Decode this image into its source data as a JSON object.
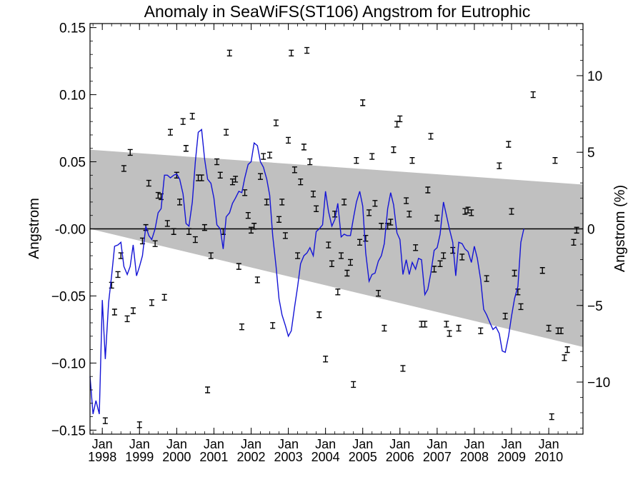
{
  "chart_data": {
    "type": "scatter",
    "title": "Anomaly in SeaWiFS(ST106) Angstrom for Eutrophic",
    "ylabel": "Angstrom",
    "ylabel_right": "Angstrom (%)",
    "xlim": [
      1997.67,
      2010.92
    ],
    "ylim": [
      -0.153,
      0.153
    ],
    "ylim_right": [
      -13.4,
      13.4
    ],
    "grid": false,
    "x_ticks": [
      {
        "month": "Jan",
        "year": "1998",
        "x": 1998.0
      },
      {
        "month": "Jan",
        "year": "1999",
        "x": 1999.0
      },
      {
        "month": "Jan",
        "year": "2000",
        "x": 2000.0
      },
      {
        "month": "Jan",
        "year": "2001",
        "x": 2001.0
      },
      {
        "month": "Jan",
        "year": "2002",
        "x": 2002.0
      },
      {
        "month": "Jan",
        "year": "2003",
        "x": 2003.0
      },
      {
        "month": "Jan",
        "year": "2004",
        "x": 2004.0
      },
      {
        "month": "Jan",
        "year": "2005",
        "x": 2005.0
      },
      {
        "month": "Jan",
        "year": "2006",
        "x": 2006.0
      },
      {
        "month": "Jan",
        "year": "2007",
        "x": 2007.0
      },
      {
        "month": "Jan",
        "year": "2008",
        "x": 2008.0
      },
      {
        "month": "Jan",
        "year": "2009",
        "x": 2009.0
      },
      {
        "month": "Jan",
        "year": "2010",
        "x": 2010.0
      }
    ],
    "y_ticks": [
      {
        "label": "0.15",
        "v": 0.15
      },
      {
        "label": "0.10",
        "v": 0.1
      },
      {
        "label": "0.05",
        "v": 0.05
      },
      {
        "label": "-0.00",
        "v": 0.0
      },
      {
        "label": "−0.05",
        "v": -0.05
      },
      {
        "label": "−0.10",
        "v": -0.1
      },
      {
        "label": "−0.15",
        "v": -0.15
      }
    ],
    "y2_ticks": [
      {
        "label": "10",
        "v": 10
      },
      {
        "label": "5",
        "v": 5
      },
      {
        "label": "0",
        "v": 0
      },
      {
        "label": "−5",
        "v": -5
      },
      {
        "label": "−10",
        "v": -10
      }
    ],
    "zero_line": 0.0,
    "confidence_band": {
      "upper": [
        [
          1997.67,
          0.059
        ],
        [
          2010.92,
          0.033
        ]
      ],
      "lower": [
        [
          1997.67,
          0.0
        ],
        [
          2010.92,
          -0.088
        ]
      ]
    },
    "points": [
      [
        1998.08,
        -0.143
      ],
      [
        1998.25,
        -0.042
      ],
      [
        1998.33,
        -0.062
      ],
      [
        1998.42,
        -0.034
      ],
      [
        1998.5,
        -0.02
      ],
      [
        1998.58,
        0.045
      ],
      [
        1998.67,
        -0.067
      ],
      [
        1998.75,
        0.057
      ],
      [
        1998.83,
        -0.061
      ],
      [
        1999.0,
        -0.146
      ],
      [
        1999.08,
        -0.009
      ],
      [
        1999.17,
        0.001
      ],
      [
        1999.25,
        0.034
      ],
      [
        1999.33,
        -0.055
      ],
      [
        1999.42,
        -0.011
      ],
      [
        1999.5,
        0.025
      ],
      [
        1999.58,
        0.024
      ],
      [
        1999.67,
        -0.051
      ],
      [
        1999.75,
        0.004
      ],
      [
        1999.83,
        0.072
      ],
      [
        1999.92,
        -0.002
      ],
      [
        2000.0,
        0.04
      ],
      [
        2000.08,
        0.02
      ],
      [
        2000.17,
        0.08
      ],
      [
        2000.25,
        0.06
      ],
      [
        2000.33,
        -0.002
      ],
      [
        2000.42,
        0.084
      ],
      [
        2000.5,
        -0.008
      ],
      [
        2000.58,
        0.038
      ],
      [
        2000.67,
        0.038
      ],
      [
        2000.75,
        0.001
      ],
      [
        2000.83,
        -0.12
      ],
      [
        2000.92,
        -0.02
      ],
      [
        2001.08,
        0.05
      ],
      [
        2001.17,
        0.04
      ],
      [
        2001.25,
        -0.002
      ],
      [
        2001.33,
        0.072
      ],
      [
        2001.42,
        0.131
      ],
      [
        2001.5,
        0.035
      ],
      [
        2001.58,
        0.037
      ],
      [
        2001.67,
        -0.028
      ],
      [
        2001.75,
        -0.073
      ],
      [
        2001.83,
        0.027
      ],
      [
        2001.92,
        0.01
      ],
      [
        2002.0,
        -0.001
      ],
      [
        2002.08,
        0.002
      ],
      [
        2002.17,
        -0.038
      ],
      [
        2002.25,
        0.039
      ],
      [
        2002.33,
        0.054
      ],
      [
        2002.42,
        0.02
      ],
      [
        2002.5,
        0.055
      ],
      [
        2002.58,
        -0.072
      ],
      [
        2002.67,
        0.079
      ],
      [
        2002.75,
        0.007
      ],
      [
        2002.83,
        0.02
      ],
      [
        2002.92,
        -0.005
      ],
      [
        2003.0,
        0.066
      ],
      [
        2003.08,
        0.131
      ],
      [
        2003.17,
        0.044
      ],
      [
        2003.25,
        -0.02
      ],
      [
        2003.33,
        0.035
      ],
      [
        2003.42,
        0.061
      ],
      [
        2003.5,
        0.133
      ],
      [
        2003.58,
        0.05
      ],
      [
        2003.67,
        0.026
      ],
      [
        2003.75,
        0.015
      ],
      [
        2003.83,
        -0.064
      ],
      [
        2004.0,
        -0.097
      ],
      [
        2004.08,
        -0.012
      ],
      [
        2004.17,
        -0.026
      ],
      [
        2004.25,
        0.011
      ],
      [
        2004.33,
        -0.047
      ],
      [
        2004.42,
        -0.02
      ],
      [
        2004.5,
        0.02
      ],
      [
        2004.58,
        -0.033
      ],
      [
        2004.67,
        -0.025
      ],
      [
        2004.75,
        -0.116
      ],
      [
        2004.83,
        0.051
      ],
      [
        2004.92,
        -0.01
      ],
      [
        2005.0,
        0.094
      ],
      [
        2005.08,
        -0.007
      ],
      [
        2005.17,
        0.012
      ],
      [
        2005.25,
        0.054
      ],
      [
        2005.33,
        0.019
      ],
      [
        2005.42,
        -0.048
      ],
      [
        2005.5,
        0.002
      ],
      [
        2005.58,
        -0.074
      ],
      [
        2005.67,
        0.002
      ],
      [
        2005.75,
        0.005
      ],
      [
        2005.83,
        0.059
      ],
      [
        2005.92,
        0.078
      ],
      [
        2006.0,
        0.082
      ],
      [
        2006.08,
        -0.104
      ],
      [
        2006.17,
        0.021
      ],
      [
        2006.25,
        0.011
      ],
      [
        2006.33,
        0.051
      ],
      [
        2006.42,
        -0.014
      ],
      [
        2006.58,
        -0.071
      ],
      [
        2006.67,
        -0.071
      ],
      [
        2006.75,
        0.029
      ],
      [
        2006.83,
        0.069
      ],
      [
        2006.92,
        -0.03
      ],
      [
        2007.0,
        0.008
      ],
      [
        2007.08,
        -0.026
      ],
      [
        2007.17,
        -0.02
      ],
      [
        2007.25,
        -0.071
      ],
      [
        2007.33,
        -0.078
      ],
      [
        2007.42,
        -0.016
      ],
      [
        2007.58,
        -0.074
      ],
      [
        2007.67,
        -0.021
      ],
      [
        2007.75,
        0.013
      ],
      [
        2007.83,
        0.014
      ],
      [
        2007.92,
        0.012
      ],
      [
        2008.17,
        -0.076
      ],
      [
        2008.33,
        -0.037
      ],
      [
        2008.67,
        0.047
      ],
      [
        2008.83,
        -0.065
      ],
      [
        2008.92,
        0.063
      ],
      [
        2009.0,
        0.013
      ],
      [
        2009.08,
        -0.033
      ],
      [
        2009.17,
        -0.047
      ],
      [
        2009.25,
        -0.058
      ],
      [
        2009.58,
        0.1
      ],
      [
        2009.83,
        -0.031
      ],
      [
        2010.0,
        -0.074
      ],
      [
        2010.08,
        -0.14
      ],
      [
        2010.17,
        0.051
      ],
      [
        2010.25,
        -0.076
      ],
      [
        2010.33,
        -0.076
      ],
      [
        2010.42,
        -0.096
      ],
      [
        2010.5,
        -0.09
      ],
      [
        2010.67,
        -0.01
      ],
      [
        2010.75,
        -0.001
      ]
    ],
    "smoothed_line": [
      [
        1997.67,
        -0.11
      ],
      [
        1997.75,
        -0.138
      ],
      [
        1997.83,
        -0.128
      ],
      [
        1997.92,
        -0.138
      ],
      [
        1998.0,
        -0.053
      ],
      [
        1998.08,
        -0.097
      ],
      [
        1998.17,
        -0.055
      ],
      [
        1998.25,
        -0.035
      ],
      [
        1998.33,
        -0.013
      ],
      [
        1998.42,
        -0.012
      ],
      [
        1998.5,
        -0.01
      ],
      [
        1998.58,
        -0.028
      ],
      [
        1998.67,
        -0.034
      ],
      [
        1998.75,
        -0.028
      ],
      [
        1998.83,
        -0.012
      ],
      [
        1998.92,
        -0.035
      ],
      [
        1999.0,
        -0.028
      ],
      [
        1999.08,
        -0.02
      ],
      [
        1999.17,
        0.002
      ],
      [
        1999.25,
        -0.005
      ],
      [
        1999.33,
        -0.008
      ],
      [
        1999.42,
        0.0
      ],
      [
        1999.5,
        0.012
      ],
      [
        1999.58,
        0.015
      ],
      [
        1999.67,
        0.04
      ],
      [
        1999.75,
        0.04
      ],
      [
        1999.83,
        0.038
      ],
      [
        1999.92,
        0.04
      ],
      [
        2000.0,
        0.041
      ],
      [
        2000.08,
        0.037
      ],
      [
        2000.17,
        0.026
      ],
      [
        2000.25,
        0.004
      ],
      [
        2000.33,
        0.002
      ],
      [
        2000.42,
        0.02
      ],
      [
        2000.5,
        0.05
      ],
      [
        2000.58,
        0.072
      ],
      [
        2000.67,
        0.074
      ],
      [
        2000.75,
        0.052
      ],
      [
        2000.83,
        0.037
      ],
      [
        2000.92,
        0.034
      ],
      [
        2001.0,
        0.023
      ],
      [
        2001.08,
        0.003
      ],
      [
        2001.17,
        0.0
      ],
      [
        2001.25,
        -0.015
      ],
      [
        2001.33,
        0.009
      ],
      [
        2001.42,
        0.012
      ],
      [
        2001.5,
        0.019
      ],
      [
        2001.58,
        0.023
      ],
      [
        2001.67,
        0.028
      ],
      [
        2001.75,
        0.027
      ],
      [
        2001.83,
        0.038
      ],
      [
        2001.92,
        0.048
      ],
      [
        2002.0,
        0.05
      ],
      [
        2002.08,
        0.064
      ],
      [
        2002.17,
        0.062
      ],
      [
        2002.25,
        0.05
      ],
      [
        2002.33,
        0.046
      ],
      [
        2002.42,
        0.037
      ],
      [
        2002.5,
        0.025
      ],
      [
        2002.58,
        -0.005
      ],
      [
        2002.67,
        -0.028
      ],
      [
        2002.75,
        -0.052
      ],
      [
        2002.83,
        -0.064
      ],
      [
        2002.92,
        -0.072
      ],
      [
        2003.0,
        -0.08
      ],
      [
        2003.08,
        -0.076
      ],
      [
        2003.17,
        -0.058
      ],
      [
        2003.25,
        -0.043
      ],
      [
        2003.33,
        -0.026
      ],
      [
        2003.42,
        -0.02
      ],
      [
        2003.5,
        -0.018
      ],
      [
        2003.58,
        -0.014
      ],
      [
        2003.67,
        -0.02
      ],
      [
        2003.75,
        -0.002
      ],
      [
        2003.83,
        0.0
      ],
      [
        2003.92,
        0.003
      ],
      [
        2004.0,
        0.028
      ],
      [
        2004.08,
        0.013
      ],
      [
        2004.17,
        0.002
      ],
      [
        2004.25,
        0.007
      ],
      [
        2004.33,
        0.019
      ],
      [
        2004.42,
        -0.006
      ],
      [
        2004.5,
        -0.004
      ],
      [
        2004.58,
        -0.005
      ],
      [
        2004.67,
        -0.005
      ],
      [
        2004.75,
        0.008
      ],
      [
        2004.83,
        0.02
      ],
      [
        2004.92,
        0.028
      ],
      [
        2005.0,
        0.017
      ],
      [
        2005.08,
        -0.018
      ],
      [
        2005.17,
        -0.039
      ],
      [
        2005.25,
        -0.034
      ],
      [
        2005.33,
        -0.033
      ],
      [
        2005.42,
        -0.024
      ],
      [
        2005.5,
        -0.02
      ],
      [
        2005.58,
        -0.011
      ],
      [
        2005.67,
        0.015
      ],
      [
        2005.75,
        0.027
      ],
      [
        2005.83,
        0.018
      ],
      [
        2005.92,
        -0.003
      ],
      [
        2006.0,
        -0.008
      ],
      [
        2006.08,
        -0.034
      ],
      [
        2006.17,
        -0.023
      ],
      [
        2006.25,
        -0.034
      ],
      [
        2006.33,
        -0.025
      ],
      [
        2006.42,
        -0.03
      ],
      [
        2006.5,
        -0.022
      ],
      [
        2006.58,
        -0.023
      ],
      [
        2006.67,
        -0.049
      ],
      [
        2006.75,
        -0.045
      ],
      [
        2006.83,
        -0.033
      ],
      [
        2006.92,
        -0.016
      ],
      [
        2007.0,
        -0.014
      ],
      [
        2007.08,
        -0.004
      ],
      [
        2007.17,
        0.02
      ],
      [
        2007.25,
        0.01
      ],
      [
        2007.33,
        0.0
      ],
      [
        2007.42,
        -0.01
      ],
      [
        2007.5,
        -0.035
      ],
      [
        2007.58,
        -0.01
      ],
      [
        2007.67,
        -0.011
      ],
      [
        2007.75,
        -0.015
      ],
      [
        2007.83,
        -0.017
      ],
      [
        2007.92,
        -0.025
      ],
      [
        2008.0,
        -0.013
      ],
      [
        2008.08,
        -0.022
      ],
      [
        2008.17,
        -0.038
      ],
      [
        2008.25,
        -0.06
      ],
      [
        2008.33,
        -0.064
      ],
      [
        2008.42,
        -0.07
      ],
      [
        2008.5,
        -0.075
      ],
      [
        2008.58,
        -0.073
      ],
      [
        2008.67,
        -0.078
      ],
      [
        2008.75,
        -0.091
      ],
      [
        2008.83,
        -0.092
      ],
      [
        2008.92,
        -0.08
      ],
      [
        2009.0,
        -0.065
      ],
      [
        2009.08,
        -0.052
      ],
      [
        2009.17,
        -0.043
      ],
      [
        2009.25,
        -0.01
      ],
      [
        2009.33,
        0.0
      ]
    ]
  }
}
